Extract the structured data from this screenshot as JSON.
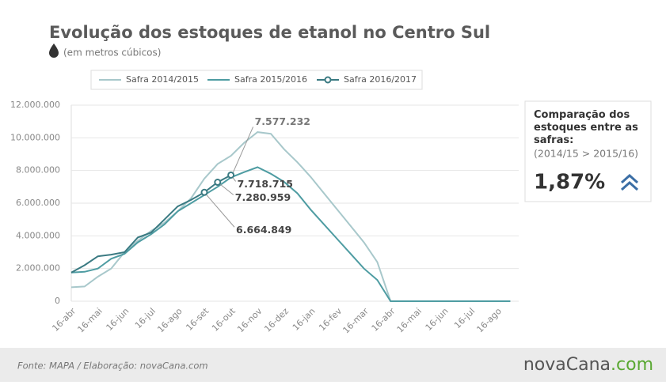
{
  "chart_data": {
    "type": "line",
    "title": "Evolução dos estoques de etanol no Centro Sul",
    "subtitle": "(em metros cúbicos)",
    "categories": [
      "16-abr",
      null,
      "16-mai",
      null,
      "16-jun",
      null,
      "16-jul",
      null,
      "16-ago",
      null,
      "16-set",
      null,
      "16-out",
      null,
      "16-nov",
      null,
      "16-dez",
      null,
      "16-jan",
      null,
      "16-fev",
      null,
      "16-mar",
      null,
      "16-abr",
      null,
      "16-mai",
      null,
      "16-jun",
      null,
      "16-jul",
      null,
      "16-ago",
      null
    ],
    "series": [
      {
        "name": "Safra 2014/2015",
        "color": "#a8c8cb",
        "marker": false,
        "values": [
          850000,
          900000,
          1500000,
          2000000,
          3000000,
          3700000,
          4300000,
          4800000,
          5500000,
          6300000,
          7500000,
          8400000,
          8900000,
          9700000,
          10350000,
          10250000,
          9300000,
          8500000,
          7600000,
          6600000,
          5600000,
          4600000,
          3600000,
          2400000,
          0,
          0,
          0,
          0,
          0,
          0,
          0,
          0,
          0,
          0
        ]
      },
      {
        "name": "Safra 2015/2016",
        "color": "#4e9ca2",
        "marker": false,
        "values": [
          1750000,
          1800000,
          2000000,
          2600000,
          2900000,
          3600000,
          4100000,
          4700000,
          5500000,
          6000000,
          6500000,
          7000000,
          7577232,
          7900000,
          8200000,
          7800000,
          7300000,
          6600000,
          5600000,
          4700000,
          3800000,
          2900000,
          2000000,
          1300000,
          0,
          0,
          0,
          0,
          0,
          0,
          0,
          0,
          0,
          0
        ],
        "value_labels": [
          null,
          null,
          null,
          null,
          null,
          null,
          null,
          null,
          null,
          null,
          null,
          null,
          "7.577.232",
          null,
          null,
          null,
          null,
          null,
          null,
          null,
          null,
          null,
          null,
          null,
          null,
          null,
          null,
          null,
          null,
          null,
          null,
          null,
          null,
          null
        ]
      },
      {
        "name": "Safra 2016/2017",
        "color": "#3a7a82",
        "marker": true,
        "values": [
          1750000,
          2200000,
          2750000,
          2850000,
          3000000,
          3900000,
          4200000,
          5000000,
          5800000,
          6200000,
          6664849,
          7280959,
          7718715,
          null,
          null,
          null,
          null,
          null,
          null,
          null,
          null,
          null,
          null,
          null,
          null,
          null,
          null,
          null,
          null,
          null,
          null,
          null,
          null,
          null
        ],
        "value_labels": [
          null,
          null,
          null,
          null,
          null,
          null,
          null,
          null,
          null,
          null,
          "6.664.849",
          "7.280.959",
          "7.718.715",
          null,
          null,
          null,
          null,
          null,
          null,
          null,
          null,
          null,
          null,
          null,
          null,
          null,
          null,
          null,
          null,
          null,
          null,
          null,
          null,
          null
        ]
      }
    ],
    "ylim": [
      0,
      12000000
    ],
    "yticks": [
      0,
      {
        "value": 2000000,
        "label": "2.000.000"
      },
      {
        "value": 4000000,
        "label": "4.000.000"
      },
      {
        "value": 6000000,
        "label": "6.000.000"
      },
      {
        "value": 8000000,
        "label": "8.000.000"
      },
      {
        "value": 10000000,
        "label": "10.000.000"
      },
      {
        "value": 12000000,
        "label": "12.000.000"
      }
    ],
    "grid": true,
    "legend": "top"
  },
  "panel": {
    "heading": "Comparação dos estoques entre as safras:",
    "comparison": "(2014/15 > 2015/16)",
    "figure": "1,87%"
  },
  "footer": {
    "source": "Fonte: MAPA  / Elaboração: novaCana.com",
    "logo": [
      "nova",
      "Cana",
      ".com"
    ]
  }
}
